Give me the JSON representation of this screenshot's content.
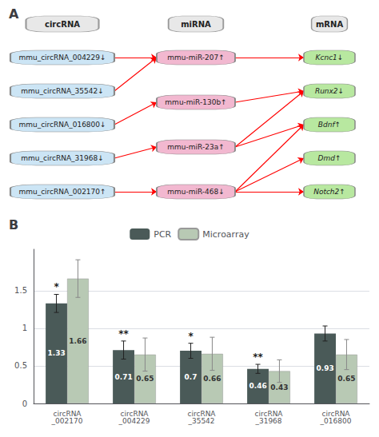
{
  "chart_data": [
    {
      "type": "graph",
      "title": "A",
      "series": [
        {
          "name": "circRNA",
          "color": "#cce5f5",
          "values": [
            "mmu_circRNA_004229↓",
            "mmu_circRNA_35542↓",
            "mmu_circRNA_016800↓",
            "mmu_circRNA_31968↓",
            "mmu_circRNA_002170↑"
          ]
        },
        {
          "name": "miRNA",
          "color": "#f2b8d0",
          "values": [
            "mmu-miR-207↑",
            "mmu-miR-130b↑",
            "mmu-miR-23a↑",
            "mmu-miR-468↓"
          ]
        },
        {
          "name": "mRNA",
          "color": "#b8e8a0",
          "values": [
            "Kcnc1↓",
            "Runx2↓",
            "Bdnf↑",
            "Dmd↑",
            "Notch2↑"
          ]
        }
      ],
      "links": [
        {
          "source": "circRNA",
          "target": "miRNA",
          "pairs": [
            [
              0,
              0
            ],
            [
              1,
              0
            ],
            [
              2,
              1
            ],
            [
              3,
              2
            ],
            [
              4,
              3
            ]
          ]
        },
        {
          "source": "miRNA",
          "target": "mRNA",
          "pairs": [
            [
              0,
              0
            ],
            [
              1,
              1
            ],
            [
              2,
              1
            ],
            [
              2,
              2
            ],
            [
              3,
              2
            ],
            [
              3,
              3
            ],
            [
              3,
              4
            ]
          ]
        }
      ]
    },
    {
      "type": "bar",
      "title": "B",
      "categories": [
        "circRNA\n_002170",
        "circRNA\n_004229",
        "circRNA\n_35542",
        "circRNA\n_31968",
        "circRNA\n_016800"
      ],
      "series": [
        {
          "name": "PCR",
          "color": "#4a5a58",
          "values": [
            1.33,
            0.71,
            0.7,
            0.46,
            0.93
          ],
          "errors": [
            0.12,
            0.12,
            0.1,
            0.06,
            0.1
          ],
          "significance": [
            "*",
            "**",
            "*",
            "**",
            null
          ]
        },
        {
          "name": "Microarray",
          "color": "#b8c9b4",
          "values": [
            1.66,
            0.65,
            0.66,
            0.43,
            0.65
          ],
          "errors": [
            0.25,
            0.22,
            0.22,
            0.15,
            0.2
          ]
        }
      ],
      "ylim": [
        0,
        2.05
      ],
      "yticks": [
        0,
        0.5,
        1,
        1.5
      ],
      "grid": true,
      "legend": "top",
      "data_labels": true
    }
  ]
}
